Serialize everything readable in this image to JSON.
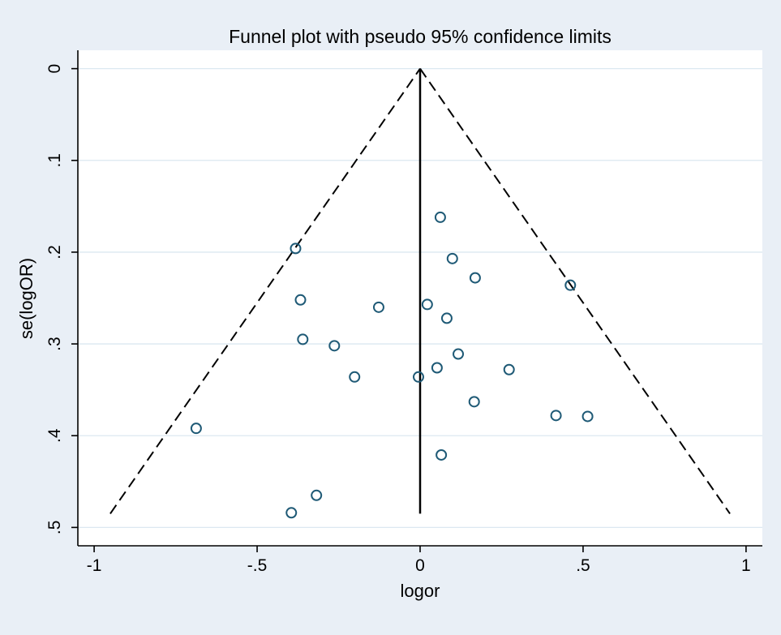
{
  "colors": {
    "page_bg": "#e9eff6",
    "plot_bg": "#ffffff",
    "grid": "#dce8f1",
    "axis": "#000000",
    "marker": "#1f5a76",
    "funnel_line": "#000000"
  },
  "chart_data": {
    "type": "scatter",
    "title": "Funnel plot with pseudo 95% confidence limits",
    "xlabel": "logor",
    "ylabel": "se(logOR)",
    "xlim": [
      -1.05,
      1.05
    ],
    "ylim": [
      -0.02,
      0.52
    ],
    "y_reversed_axis_note": "se axis runs 0 at top to .5 at bottom",
    "grid": "horizontal",
    "legend": "none",
    "x_ticks": [
      {
        "v": -1,
        "label": "-1"
      },
      {
        "v": -0.5,
        "label": "-.5"
      },
      {
        "v": 0,
        "label": "0"
      },
      {
        "v": 0.5,
        "label": ".5"
      },
      {
        "v": 1,
        "label": "1"
      }
    ],
    "y_ticks": [
      {
        "v": 0,
        "label": "0"
      },
      {
        "v": 0.1,
        "label": ".1"
      },
      {
        "v": 0.2,
        "label": ".2"
      },
      {
        "v": 0.3,
        "label": ".3"
      },
      {
        "v": 0.4,
        "label": ".4"
      },
      {
        "v": 0.5,
        "label": ".5"
      }
    ],
    "funnel": {
      "center_x": 0,
      "se_top": 0,
      "se_bottom": 0.485,
      "ci_multiplier": 1.96
    },
    "points": [
      [
        0.062,
        0.162
      ],
      [
        -0.382,
        0.196
      ],
      [
        0.099,
        0.207
      ],
      [
        0.169,
        0.228
      ],
      [
        0.461,
        0.236
      ],
      [
        -0.367,
        0.252
      ],
      [
        -0.127,
        0.26
      ],
      [
        0.022,
        0.257
      ],
      [
        0.082,
        0.272
      ],
      [
        -0.36,
        0.295
      ],
      [
        -0.263,
        0.302
      ],
      [
        0.117,
        0.311
      ],
      [
        0.052,
        0.326
      ],
      [
        -0.201,
        0.336
      ],
      [
        0.273,
        0.328
      ],
      [
        -0.005,
        0.336
      ],
      [
        0.166,
        0.363
      ],
      [
        0.417,
        0.378
      ],
      [
        0.514,
        0.379
      ],
      [
        -0.687,
        0.392
      ],
      [
        0.065,
        0.421
      ],
      [
        -0.318,
        0.465
      ],
      [
        -0.395,
        0.484
      ]
    ]
  }
}
